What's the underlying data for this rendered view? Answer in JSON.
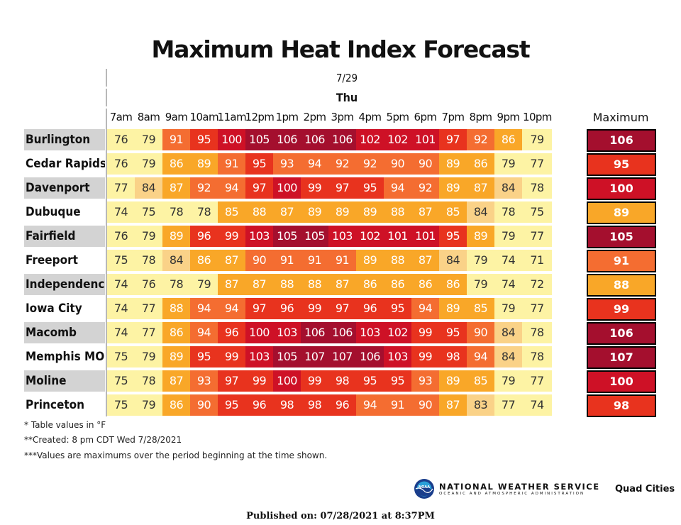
{
  "title": "Maximum Heat Index Forecast",
  "date": "7/29",
  "day": "Thu",
  "max_header": "Maximum",
  "notes": [
    "* Table values in °F",
    "**Created: 8 pm CDT Wed 7/28/2021",
    "***Values are maximums over the period beginning at the time shown."
  ],
  "footer": {
    "agency": "NATIONAL WEATHER SERVICE",
    "agency_sub": "OCEANIC AND ATMOSPHERIC ADMINISTRATION",
    "logo_text": "NOAA",
    "office": "Quad Cities",
    "published": "Published on: 07/28/2021 at 8:37PM"
  },
  "colors": {
    "lt80": "#fdf3a4",
    "80_85": "#fad288",
    "85_90": "#f9a728",
    "90_95": "#f46d31",
    "95_100": "#e8331e",
    "100_105": "#ce1126",
    "105plus": "#a40f2e",
    "row_label_shade": "#d3d3d3"
  },
  "chart_data": {
    "type": "table",
    "title": "Maximum Heat Index Forecast",
    "units": "°F",
    "columns": [
      "7am",
      "8am",
      "9am",
      "10am",
      "11am",
      "12pm",
      "1pm",
      "2pm",
      "3pm",
      "4pm",
      "5pm",
      "6pm",
      "7pm",
      "8pm",
      "9pm",
      "10pm"
    ],
    "rows": [
      {
        "city": "Burlington",
        "values": [
          76,
          79,
          91,
          95,
          100,
          105,
          106,
          106,
          106,
          102,
          102,
          101,
          97,
          92,
          86,
          79
        ],
        "max": 106
      },
      {
        "city": "Cedar Rapids",
        "values": [
          76,
          79,
          86,
          89,
          91,
          95,
          93,
          94,
          92,
          92,
          90,
          90,
          89,
          86,
          79,
          77
        ],
        "max": 95
      },
      {
        "city": "Davenport",
        "values": [
          77,
          84,
          87,
          92,
          94,
          97,
          100,
          99,
          97,
          95,
          94,
          92,
          89,
          87,
          84,
          78
        ],
        "max": 100
      },
      {
        "city": "Dubuque",
        "values": [
          74,
          75,
          78,
          78,
          85,
          88,
          87,
          89,
          89,
          89,
          88,
          87,
          85,
          84,
          78,
          75
        ],
        "max": 89
      },
      {
        "city": "Fairfield",
        "values": [
          76,
          79,
          89,
          96,
          99,
          103,
          105,
          105,
          103,
          102,
          101,
          101,
          95,
          89,
          79,
          77
        ],
        "max": 105
      },
      {
        "city": "Freeport",
        "values": [
          75,
          78,
          84,
          86,
          87,
          90,
          91,
          91,
          91,
          89,
          88,
          87,
          84,
          79,
          74,
          71
        ],
        "max": 91
      },
      {
        "city": "Independence",
        "values": [
          74,
          76,
          78,
          79,
          87,
          87,
          88,
          88,
          87,
          86,
          86,
          86,
          86,
          79,
          74,
          72
        ],
        "max": 88
      },
      {
        "city": "Iowa City",
        "values": [
          74,
          77,
          88,
          94,
          94,
          97,
          96,
          99,
          97,
          96,
          95,
          94,
          89,
          85,
          79,
          77
        ],
        "max": 99
      },
      {
        "city": "Macomb",
        "values": [
          74,
          77,
          86,
          94,
          96,
          100,
          103,
          106,
          106,
          103,
          102,
          99,
          95,
          90,
          84,
          78
        ],
        "max": 106
      },
      {
        "city": "Memphis MO",
        "values": [
          75,
          79,
          89,
          95,
          99,
          103,
          105,
          107,
          107,
          106,
          103,
          99,
          98,
          94,
          84,
          78
        ],
        "max": 107
      },
      {
        "city": "Moline",
        "values": [
          75,
          78,
          87,
          93,
          97,
          99,
          100,
          99,
          98,
          95,
          95,
          93,
          89,
          85,
          79,
          77
        ],
        "max": 100
      },
      {
        "city": "Princeton",
        "values": [
          75,
          79,
          86,
          90,
          95,
          96,
          98,
          98,
          96,
          94,
          91,
          90,
          87,
          83,
          77,
          74
        ],
        "max": 98
      }
    ]
  }
}
